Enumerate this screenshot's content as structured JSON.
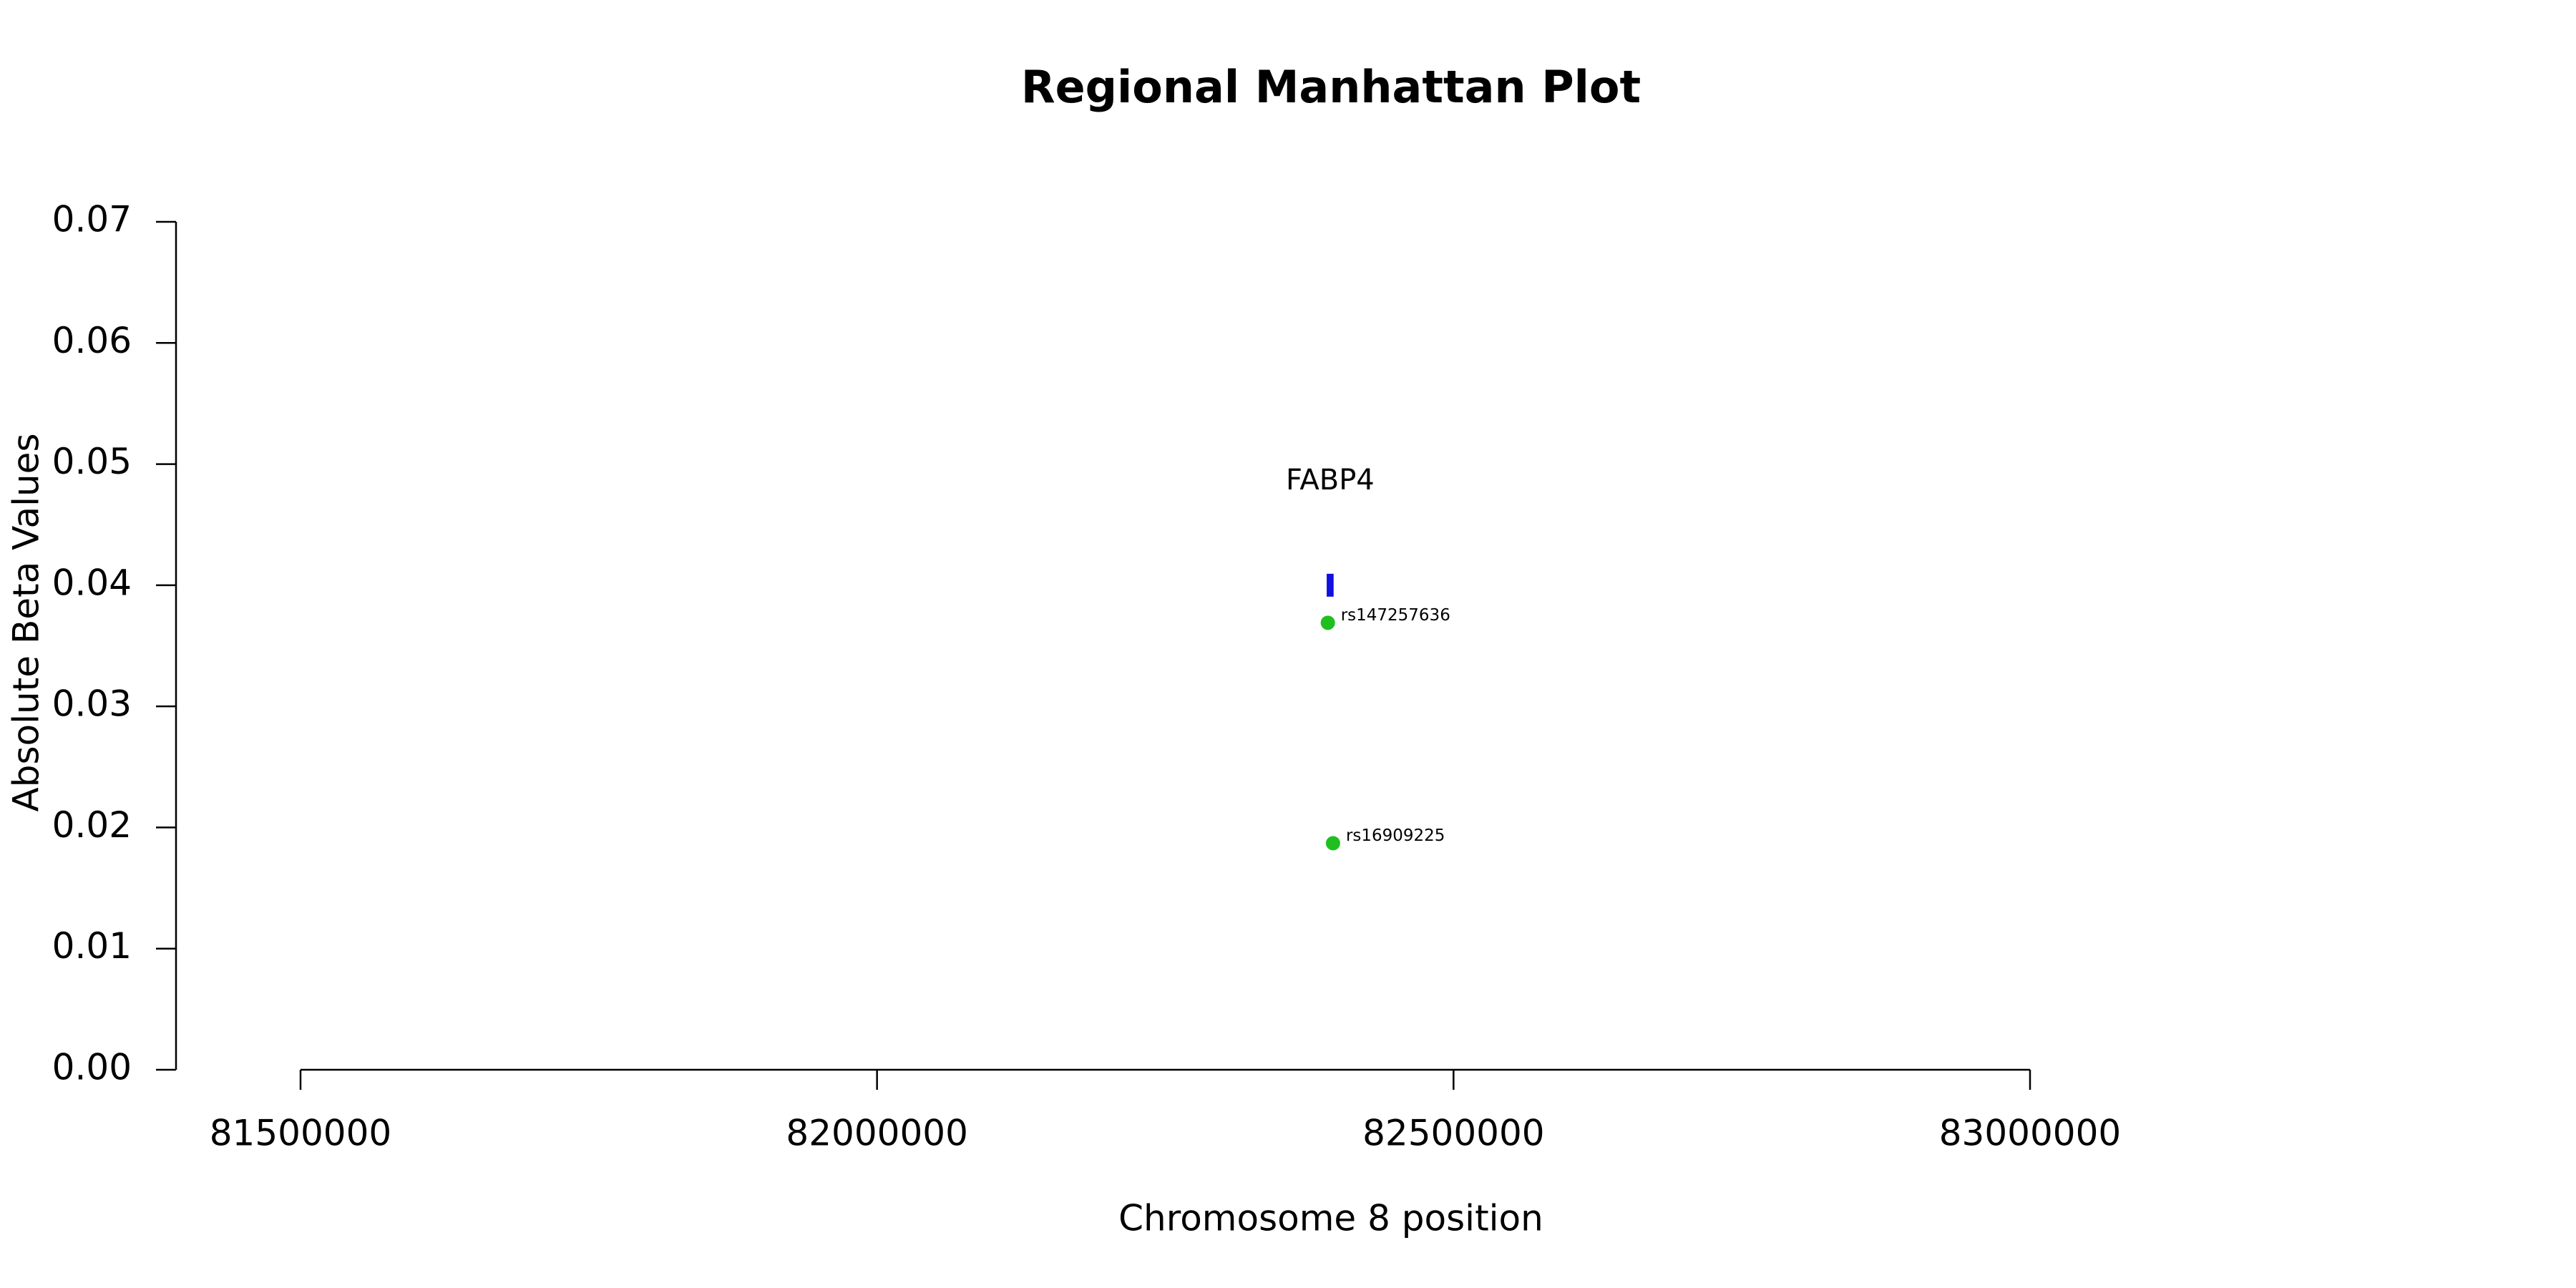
{
  "chart_data": {
    "type": "scatter",
    "title": "Regional Manhattan Plot",
    "xlabel": "Chromosome 8 position",
    "ylabel": "Absolute Beta Values",
    "x": [
      82391000,
      82395500
    ],
    "values": [
      0.0369,
      0.0187
    ],
    "point_labels": [
      "rs147257636",
      "rs16909225"
    ],
    "color": "#1fbf1f",
    "gene": {
      "name": "FABP4",
      "start": 82390000,
      "end": 82396000,
      "y": 0.04,
      "color": "#1010e0"
    },
    "xlim": [
      81500000,
      83000000
    ],
    "xticks": [
      81500000,
      82000000,
      82500000,
      83000000
    ],
    "ylim": [
      0,
      0.07
    ],
    "yticks": [
      {
        "value": 0,
        "label": "0.00"
      },
      0.01,
      0.02,
      0.03,
      0.04,
      0.05,
      0.06,
      0.07
    ]
  }
}
